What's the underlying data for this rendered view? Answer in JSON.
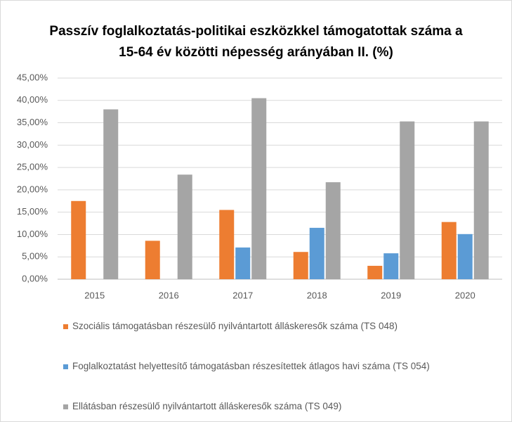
{
  "chart_data": {
    "type": "bar",
    "title": "Passzív foglalkoztatás-politikai eszközkkel támogatottak száma a\n15-64 év közötti népesség  arányában II. (%)",
    "categories": [
      "2015",
      "2016",
      "2017",
      "2018",
      "2019",
      "2020"
    ],
    "series": [
      {
        "name": "Szociális támogatásban részesülő nyilvántartott álláskeresők száma (TS 048)",
        "color": "#ed7d31",
        "values": [
          17.5,
          8.6,
          15.5,
          6.1,
          3.0,
          12.8
        ]
      },
      {
        "name": "Foglalkoztatást helyettesítő támogatásban részesítettek átlagos havi száma (TS 054)",
        "color": "#5b9bd5",
        "values": [
          null,
          null,
          7.1,
          11.5,
          5.8,
          10.1
        ]
      },
      {
        "name": "Ellátásban részesülő nyilvántartott álláskeresők száma (TS 049)",
        "color": "#a5a5a5",
        "values": [
          38.0,
          23.4,
          40.5,
          21.7,
          35.3,
          35.3
        ]
      }
    ],
    "ylim": [
      0,
      45
    ],
    "yticks": [
      {
        "value": 0,
        "label": "0,00%"
      },
      {
        "value": 5,
        "label": "5,00%"
      },
      {
        "value": 10,
        "label": "10,00%"
      },
      {
        "value": 15,
        "label": "15,00%"
      },
      {
        "value": 20,
        "label": "20,00%"
      },
      {
        "value": 25,
        "label": "25,00%"
      },
      {
        "value": 30,
        "label": "30,00%"
      },
      {
        "value": 35,
        "label": "35,00%"
      },
      {
        "value": 40,
        "label": "40,00%"
      },
      {
        "value": 45,
        "label": "45,00%"
      }
    ],
    "grid": true,
    "legend": "bottom"
  }
}
